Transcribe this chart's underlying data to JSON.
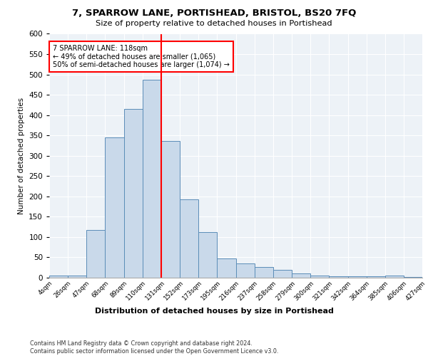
{
  "title": "7, SPARROW LANE, PORTISHEAD, BRISTOL, BS20 7FQ",
  "subtitle": "Size of property relative to detached houses in Portishead",
  "xlabel": "Distribution of detached houses by size in Portishead",
  "ylabel": "Number of detached properties",
  "bar_labels": [
    "4sqm",
    "26sqm",
    "47sqm",
    "68sqm",
    "89sqm",
    "110sqm",
    "131sqm",
    "152sqm",
    "173sqm",
    "195sqm",
    "216sqm",
    "237sqm",
    "258sqm",
    "279sqm",
    "300sqm",
    "321sqm",
    "342sqm",
    "364sqm",
    "385sqm",
    "406sqm",
    "427sqm"
  ],
  "bar_values": [
    5,
    6,
    118,
    345,
    415,
    487,
    337,
    192,
    112,
    48,
    35,
    27,
    19,
    10,
    5,
    3,
    4,
    3,
    5,
    2
  ],
  "bar_color": "#c9d9ea",
  "bar_edge_color": "#5b8db8",
  "vline_x": 6,
  "vline_color": "red",
  "annotation_text": "7 SPARROW LANE: 118sqm\n← 49% of detached houses are smaller (1,065)\n50% of semi-detached houses are larger (1,074) →",
  "annotation_box_color": "white",
  "annotation_box_edge_color": "red",
  "ylim": [
    0,
    600
  ],
  "yticks": [
    0,
    50,
    100,
    150,
    200,
    250,
    300,
    350,
    400,
    450,
    500,
    550,
    600
  ],
  "footer_line1": "Contains HM Land Registry data © Crown copyright and database right 2024.",
  "footer_line2": "Contains public sector information licensed under the Open Government Licence v3.0.",
  "bg_color": "#edf2f7",
  "grid_color": "white"
}
